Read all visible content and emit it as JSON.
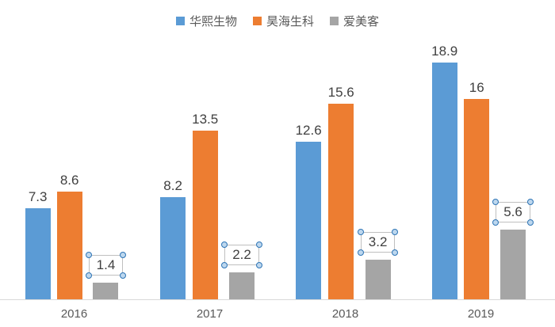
{
  "chart_data": {
    "type": "bar",
    "title": "",
    "categories": [
      "2016",
      "2017",
      "2018",
      "2019"
    ],
    "series": [
      {
        "name": "华熙生物",
        "color": "#5B9BD5",
        "values": [
          7.3,
          8.2,
          12.6,
          18.9
        ]
      },
      {
        "name": "昊海生科",
        "color": "#ED7D31",
        "values": [
          8.6,
          13.5,
          15.6,
          16
        ]
      },
      {
        "name": "爱美客",
        "color": "#A5A5A5",
        "values": [
          1.4,
          2.2,
          3.2,
          5.6
        ],
        "labels_selected": true
      }
    ],
    "data_labels": true,
    "legend_position": "top",
    "grid": false,
    "ylim": [
      0,
      20
    ],
    "axis_color": "#D9D9D9",
    "label_color": "#404040",
    "tick_color": "#595959"
  }
}
